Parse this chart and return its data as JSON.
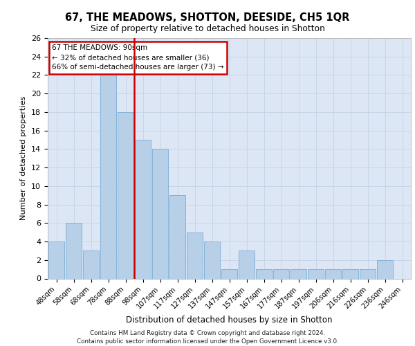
{
  "title1": "67, THE MEADOWS, SHOTTON, DEESIDE, CH5 1QR",
  "title2": "Size of property relative to detached houses in Shotton",
  "xlabel": "Distribution of detached houses by size in Shotton",
  "ylabel": "Number of detached properties",
  "categories": [
    "48sqm",
    "58sqm",
    "68sqm",
    "78sqm",
    "88sqm",
    "98sqm",
    "107sqm",
    "117sqm",
    "127sqm",
    "137sqm",
    "147sqm",
    "157sqm",
    "167sqm",
    "177sqm",
    "187sqm",
    "197sqm",
    "206sqm",
    "216sqm",
    "226sqm",
    "236sqm",
    "246sqm"
  ],
  "values": [
    4,
    6,
    3,
    22,
    18,
    15,
    14,
    9,
    5,
    4,
    1,
    3,
    1,
    1,
    1,
    1,
    1,
    1,
    1,
    2,
    0
  ],
  "bar_color": "#b8cfe8",
  "bar_edge_color": "#7aadd4",
  "grid_color": "#c8d4e8",
  "vline_x_index": 4,
  "vline_color": "#cc0000",
  "annotation_text1": "67 THE MEADOWS: 90sqm",
  "annotation_text2": "← 32% of detached houses are smaller (36)",
  "annotation_text3": "66% of semi-detached houses are larger (73) →",
  "annotation_box_color": "#cc0000",
  "annotation_bg_color": "white",
  "ylim": [
    0,
    26
  ],
  "yticks": [
    0,
    2,
    4,
    6,
    8,
    10,
    12,
    14,
    16,
    18,
    20,
    22,
    24,
    26
  ],
  "footer": "Contains HM Land Registry data © Crown copyright and database right 2024.\nContains public sector information licensed under the Open Government Licence v3.0.",
  "background_color": "#dce6f5",
  "fig_bg_color": "#ffffff"
}
